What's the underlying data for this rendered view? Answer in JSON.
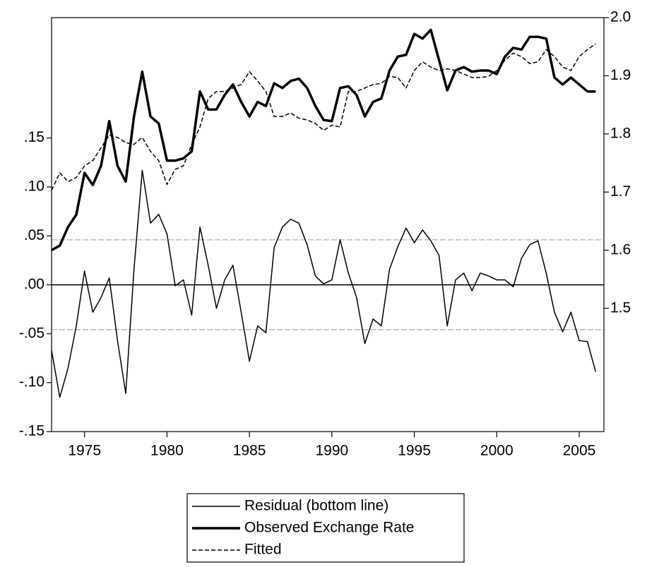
{
  "chart_data": {
    "type": "line",
    "x": [
      1973.0,
      1973.5,
      1974.0,
      1974.5,
      1975.0,
      1975.5,
      1976.0,
      1976.5,
      1977.0,
      1977.5,
      1978.0,
      1978.5,
      1979.0,
      1979.5,
      1980.0,
      1980.5,
      1981.0,
      1981.5,
      1982.0,
      1982.5,
      1983.0,
      1983.5,
      1984.0,
      1984.5,
      1985.0,
      1985.5,
      1986.0,
      1986.5,
      1987.0,
      1987.5,
      1988.0,
      1988.5,
      1989.0,
      1989.5,
      1990.0,
      1990.5,
      1991.0,
      1991.5,
      1992.0,
      1992.5,
      1993.0,
      1993.5,
      1994.0,
      1994.5,
      1995.0,
      1995.5,
      1996.0,
      1996.5,
      1997.0,
      1997.5,
      1998.0,
      1998.5,
      1999.0,
      1999.5,
      2000.0,
      2000.5,
      2001.0,
      2001.5,
      2002.0,
      2002.5,
      2003.0,
      2003.5,
      2004.0,
      2004.5,
      2005.0,
      2005.5,
      2006.0
    ],
    "series": [
      {
        "name": "Residual (bottom line)",
        "color": "#000000",
        "axis": "y",
        "line_width": 1.5,
        "dashed": false,
        "values": [
          -0.067,
          -0.115,
          -0.085,
          -0.042,
          0.014,
          -0.028,
          -0.013,
          0.007,
          -0.057,
          -0.111,
          0.016,
          0.117,
          0.063,
          0.072,
          0.052,
          -0.001,
          0.005,
          -0.031,
          0.059,
          0.02,
          -0.024,
          0.005,
          0.02,
          -0.028,
          -0.078,
          -0.042,
          -0.049,
          0.038,
          0.059,
          0.067,
          0.063,
          0.041,
          0.009,
          0.001,
          0.005,
          0.046,
          0.012,
          -0.013,
          -0.06,
          -0.035,
          -0.042,
          0.016,
          0.039,
          0.058,
          0.043,
          0.056,
          0.045,
          0.03,
          -0.042,
          0.005,
          0.012,
          -0.006,
          0.012,
          0.009,
          0.005,
          0.005,
          -0.002,
          0.027,
          0.041,
          0.045,
          0.012,
          -0.028,
          -0.048,
          -0.028,
          -0.057,
          -0.058,
          -0.089
        ]
      },
      {
        "name": "Observed Exchange Rate",
        "color": "#000000",
        "axis": "y2",
        "line_width": 3.5,
        "dashed": false,
        "values": [
          1.6,
          1.608,
          1.64,
          1.661,
          1.733,
          1.712,
          1.745,
          1.822,
          1.745,
          1.718,
          1.83,
          1.907,
          1.83,
          1.818,
          1.754,
          1.754,
          1.758,
          1.77,
          1.873,
          1.842,
          1.842,
          1.867,
          1.885,
          1.855,
          1.83,
          1.855,
          1.848,
          1.887,
          1.879,
          1.891,
          1.895,
          1.879,
          1.848,
          1.824,
          1.822,
          1.879,
          1.882,
          1.867,
          1.83,
          1.855,
          1.861,
          1.909,
          1.933,
          1.936,
          1.972,
          1.964,
          1.979,
          1.927,
          1.875,
          1.909,
          1.915,
          1.907,
          1.909,
          1.909,
          1.903,
          1.933,
          1.948,
          1.945,
          1.967,
          1.967,
          1.964,
          1.897,
          1.885,
          1.897,
          1.885,
          1.873,
          1.873
        ]
      },
      {
        "name": "Fitted",
        "color": "#000000",
        "axis": "y2",
        "line_width": 1.5,
        "dashed": true,
        "values": [
          1.703,
          1.733,
          1.718,
          1.725,
          1.745,
          1.754,
          1.776,
          1.798,
          1.794,
          1.785,
          1.782,
          1.794,
          1.77,
          1.754,
          1.713,
          1.739,
          1.745,
          1.782,
          1.812,
          1.861,
          1.873,
          1.873,
          1.879,
          1.885,
          1.907,
          1.891,
          1.873,
          1.83,
          1.83,
          1.836,
          1.827,
          1.824,
          1.818,
          1.806,
          1.815,
          1.812,
          1.873,
          1.873,
          1.879,
          1.885,
          1.887,
          1.899,
          1.897,
          1.879,
          1.909,
          1.924,
          1.915,
          1.909,
          1.912,
          1.909,
          1.903,
          1.897,
          1.897,
          1.899,
          1.909,
          1.927,
          1.939,
          1.933,
          1.921,
          1.924,
          1.945,
          1.933,
          1.915,
          1.909,
          1.933,
          1.945,
          1.955
        ]
      }
    ],
    "xlim": [
      1973.0,
      2006.5
    ],
    "xticks": [
      1975,
      1980,
      1985,
      1990,
      1995,
      2000,
      2005
    ],
    "ylim": [
      -0.15,
      0.273
    ],
    "yticks": [
      {
        "value": -0.15,
        "label": "-.15"
      },
      {
        "value": -0.1,
        "label": "-.10"
      },
      {
        "value": -0.05,
        "label": "-.05"
      },
      {
        "value": 0,
        "label": ".00"
      },
      {
        "value": 0.05,
        "label": ".05"
      },
      {
        "value": 0.1,
        "label": ".10"
      },
      {
        "value": 0.15,
        "label": ".15"
      }
    ],
    "y2lim": [
      1.288,
      2.0
    ],
    "y2ticks": [
      1.5,
      1.6,
      1.7,
      1.8,
      1.9,
      {
        "value": 2,
        "label": "2.0"
      }
    ],
    "zero_line": 0,
    "band_lines": [
      -0.046,
      0.046
    ]
  }
}
